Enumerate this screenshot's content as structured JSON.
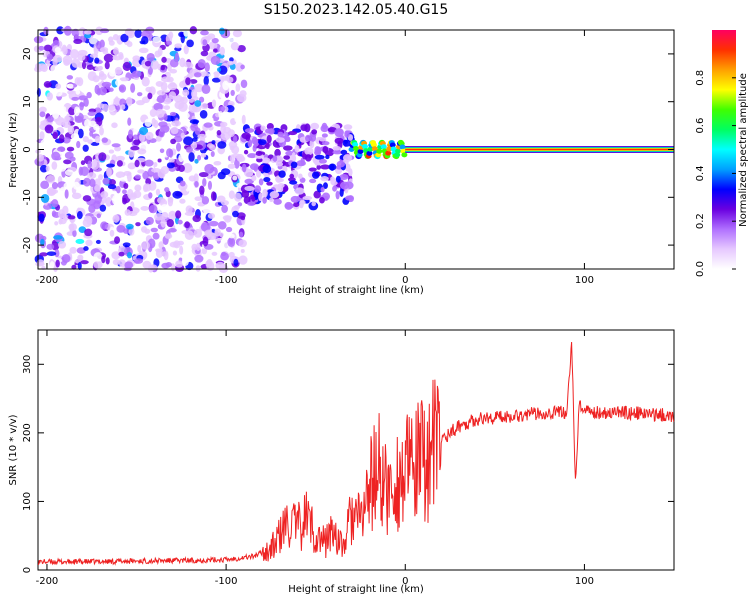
{
  "title": "S150.2023.142.05.40.G15",
  "chart_data": [
    {
      "type": "heatmap",
      "xlabel": "Height of straight line (km)",
      "ylabel": "Frequency (Hz)",
      "xlim": [
        -205,
        150
      ],
      "ylim": [
        -25,
        25
      ],
      "xticks": [
        -200,
        -100,
        0,
        100
      ],
      "yticks": [
        -20,
        -10,
        0,
        10,
        20
      ],
      "colorbar": {
        "label": "Normalized spectral amplitude",
        "range": [
          0,
          1
        ],
        "ticks": [
          0.0,
          0.2,
          0.4,
          0.6,
          0.8
        ],
        "colors": [
          "#ffffff",
          "#e6c8ff",
          "#b070ff",
          "#6a00e0",
          "#0000ff",
          "#00a0ff",
          "#00ffff",
          "#00ff60",
          "#40ff00",
          "#ffff00",
          "#ffa000",
          "#ff3000",
          "#ff0060"
        ]
      },
      "regions": [
        {
          "x_range": [
            -205,
            -90
          ],
          "freq_range": [
            -25,
            25
          ],
          "amplitude": "low (0.0-0.15), scattered noise"
        },
        {
          "x_range": [
            -90,
            -30
          ],
          "freq_range": [
            -12,
            5
          ],
          "amplitude": "moderate (0.1-0.3), scattered"
        },
        {
          "x_range": [
            -30,
            0
          ],
          "freq_range": [
            -3,
            3
          ],
          "amplitude": "0.2-0.9, near 0 Hz"
        },
        {
          "x_range": [
            0,
            150
          ],
          "freq_range": [
            0,
            0
          ],
          "amplitude": "~0.9-1.0 at 0 Hz"
        }
      ]
    },
    {
      "type": "line",
      "xlabel": "Height of straight line (km)",
      "ylabel": "SNR (10 * v/v)",
      "xlim": [
        -205,
        150
      ],
      "ylim": [
        0,
        350
      ],
      "xticks": [
        -200,
        -100,
        0,
        100
      ],
      "yticks": [
        0,
        100,
        200,
        300
      ],
      "color": "#ee2222",
      "series": [
        {
          "x": [
            -205,
            -180,
            -150,
            -120,
            -100,
            -85,
            -75,
            -70,
            -65,
            -60,
            -55,
            -50,
            -45,
            -40,
            -35,
            -30,
            -25,
            -20,
            -15,
            -10,
            -5,
            0,
            10,
            20,
            30,
            40,
            60,
            80,
            90,
            93,
            95,
            97,
            100,
            120,
            150
          ],
          "y": [
            12,
            12,
            13,
            14,
            15,
            20,
            30,
            50,
            70,
            60,
            80,
            50,
            40,
            60,
            30,
            80,
            70,
            120,
            150,
            110,
            130,
            140,
            160,
            190,
            210,
            220,
            225,
            230,
            230,
            330,
            120,
            240,
            230,
            230,
            225
          ]
        }
      ]
    }
  ]
}
